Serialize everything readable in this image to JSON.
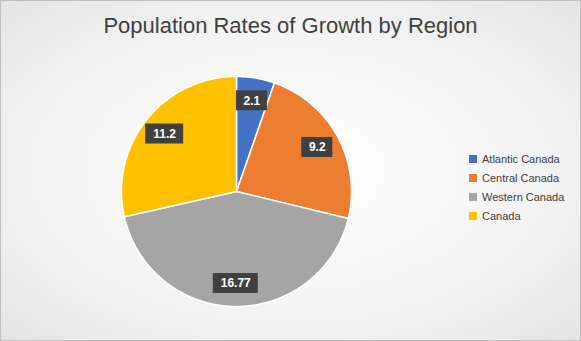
{
  "chart_data": {
    "type": "pie",
    "title": "Population Rates of Growth by Region",
    "categories": [
      "Atlantic Canada",
      "Central Canada",
      "Western Canada",
      "Canada"
    ],
    "values": [
      2.1,
      9.2,
      16.77,
      11.2
    ],
    "colors": [
      "#4472c4",
      "#ed7d31",
      "#a5a5a5",
      "#ffc000"
    ],
    "data_labels": true,
    "legend": "right"
  }
}
